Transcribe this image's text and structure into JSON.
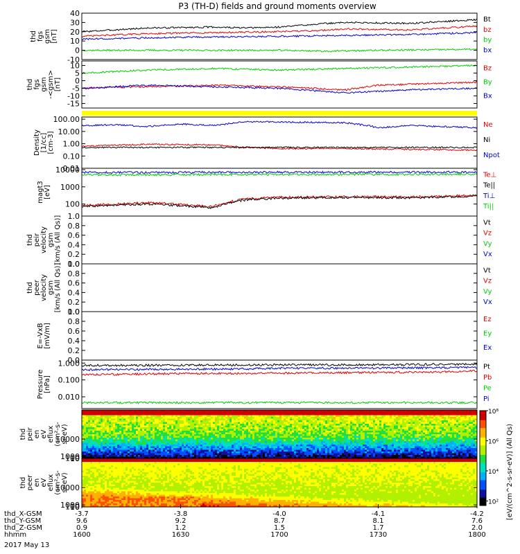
{
  "figure": {
    "title": "P3 (TH-D) fields and ground moments overview",
    "date_label": "2017 May 13"
  },
  "colorbar": {
    "label": "[eV/(cm^2-s-sr-eV)] (All Qs)",
    "ticks": [
      "10⁸",
      "10⁶",
      "10⁴",
      "10²"
    ],
    "range": [
      50,
      100000000
    ]
  },
  "colors": {
    "black": "#000000",
    "red": "#e00000",
    "green": "#00d000",
    "blue": "#0000d0",
    "yellow": "#ffff00"
  },
  "chart_data": [
    {
      "id": "fgs_gsm",
      "type": "line",
      "ylabel": [
        "thd",
        "fgs",
        "gsm",
        "[nT]"
      ],
      "ylim": [
        -10,
        40
      ],
      "yticks": [
        "40",
        "30",
        "20",
        "10",
        "0",
        "-10"
      ],
      "series": [
        {
          "name": "Bt",
          "color": "#000000",
          "x": [
            1600,
            1620,
            1640,
            1650,
            1700,
            1710,
            1720,
            1740,
            1750,
            1800
          ],
          "values": [
            20,
            24,
            25,
            24,
            25,
            28,
            30,
            29,
            31,
            33
          ]
        },
        {
          "name": "bz",
          "color": "#e00000",
          "x": [
            1600,
            1620,
            1640,
            1700,
            1710,
            1720,
            1740,
            1750,
            1800
          ],
          "values": [
            15,
            18,
            19,
            20,
            21,
            23,
            22,
            24,
            26
          ]
        },
        {
          "name": "by",
          "color": "#00d000",
          "x": [
            1600,
            1630,
            1700,
            1715,
            1730,
            1800
          ],
          "values": [
            0,
            0,
            0,
            -1,
            0,
            1
          ]
        },
        {
          "name": "bx",
          "color": "#0000d0",
          "x": [
            1600,
            1630,
            1700,
            1720,
            1740,
            1800
          ],
          "values": [
            12,
            14,
            15,
            16,
            17,
            19
          ]
        }
      ]
    },
    {
      "id": "fgs_gsm_comp",
      "type": "line",
      "ylabel": [
        "thd",
        "fgs",
        "gsm",
        "-<gsm>",
        "[nT]"
      ],
      "ylim": [
        -18,
        13
      ],
      "yticks": [
        "10",
        "5",
        "0",
        "-5",
        "-10",
        "-15"
      ],
      "series": [
        {
          "name": "Bz",
          "color": "#e00000",
          "x": [
            1600,
            1620,
            1640,
            1700,
            1720,
            1730,
            1800
          ],
          "values": [
            -5,
            -4,
            -3,
            -4,
            -6,
            -3,
            -1
          ]
        },
        {
          "name": "By",
          "color": "#00d000",
          "x": [
            1600,
            1620,
            1640,
            1700,
            1720,
            1800
          ],
          "values": [
            5,
            7,
            8,
            7,
            8,
            10
          ]
        },
        {
          "name": "Bx",
          "color": "#0000d0",
          "x": [
            1600,
            1620,
            1640,
            1700,
            1720,
            1740,
            1800
          ],
          "values": [
            -5,
            -3,
            -4,
            -5,
            -8,
            -6,
            -5
          ]
        }
      ]
    },
    {
      "id": "density",
      "type": "line",
      "log": true,
      "ylabel": [
        "Density",
        "[1/cc]",
        "[cm-3]"
      ],
      "ylim": [
        0.01,
        150
      ],
      "yticks": [
        "100.00",
        "10.00",
        "1.00",
        "0.10",
        "0.01"
      ],
      "series": [
        {
          "name": "Ne",
          "color": "#e00000",
          "x": [
            1600,
            1620,
            1640,
            1650,
            1700,
            1720,
            1740,
            1800
          ],
          "values": [
            0.6,
            0.9,
            0.8,
            0.5,
            0.4,
            0.4,
            0.35,
            0.3
          ]
        },
        {
          "name": "Ni",
          "color": "#000000",
          "x": [
            1600,
            1630,
            1700,
            1730,
            1800
          ],
          "values": [
            0.5,
            0.5,
            0.5,
            0.5,
            0.5
          ]
        },
        {
          "name": "Npot",
          "color": "#0000d0",
          "x": [
            1600,
            1610,
            1620,
            1630,
            1640,
            1650,
            1700,
            1720,
            1730,
            1740,
            1800
          ],
          "values": [
            30,
            35,
            25,
            40,
            30,
            60,
            60,
            50,
            20,
            30,
            20
          ]
        }
      ]
    },
    {
      "id": "temperature",
      "type": "line",
      "log": true,
      "ylabel": [
        "magt3",
        "[eV]"
      ],
      "ylim": [
        20,
        12000
      ],
      "yticks": [
        "10000",
        "1000",
        "100"
      ],
      "series": [
        {
          "name": "Te⊥",
          "color": "#e00000",
          "x": [
            1600,
            1620,
            1640,
            1650,
            1700,
            1720,
            1740,
            1800
          ],
          "values": [
            80,
            120,
            70,
            200,
            250,
            270,
            260,
            320
          ]
        },
        {
          "name": "Te||",
          "color": "#000000",
          "x": [
            1600,
            1620,
            1640,
            1650,
            1700,
            1720,
            1740,
            1800
          ],
          "values": [
            70,
            100,
            60,
            180,
            220,
            240,
            230,
            290
          ]
        },
        {
          "name": "Ti⊥",
          "color": "#0000d0",
          "x": [
            1600,
            1700,
            1800
          ],
          "values": [
            6800,
            7000,
            7200
          ]
        },
        {
          "name": "Ti||",
          "color": "#00d000",
          "x": [
            1600,
            1700,
            1800
          ],
          "values": [
            5000,
            5200,
            5400
          ]
        }
      ]
    },
    {
      "id": "peir_velocity",
      "type": "line",
      "ylabel": [
        "thd",
        "peir",
        "velocity",
        "gsm",
        "[km/s (All Qs)]"
      ],
      "ylim": [
        0,
        1
      ],
      "yticks": [
        "1.0",
        "0.8",
        "0.6",
        "0.4",
        "0.2",
        "0.0"
      ],
      "series": [
        {
          "name": "Vt",
          "color": "#000000",
          "x": [],
          "values": []
        },
        {
          "name": "Vz",
          "color": "#e00000",
          "x": [],
          "values": []
        },
        {
          "name": "Vy",
          "color": "#00d000",
          "x": [],
          "values": []
        },
        {
          "name": "Vx",
          "color": "#0000d0",
          "x": [],
          "values": []
        }
      ]
    },
    {
      "id": "peer_velocity",
      "type": "line",
      "ylabel": [
        "thd",
        "peer",
        "velocity",
        "gsm",
        "[km/s (All Qs)]"
      ],
      "ylim": [
        0,
        1
      ],
      "yticks": [
        "1.0",
        "0.8",
        "0.6",
        "0.4",
        "0.2",
        "0.0"
      ],
      "series": [
        {
          "name": "Vt",
          "color": "#000000",
          "x": [],
          "values": []
        },
        {
          "name": "Vz",
          "color": "#e00000",
          "x": [],
          "values": []
        },
        {
          "name": "Vy",
          "color": "#00d000",
          "x": [],
          "values": []
        },
        {
          "name": "Vx",
          "color": "#0000d0",
          "x": [],
          "values": []
        }
      ]
    },
    {
      "id": "efield",
      "type": "line",
      "ylabel": [
        "E=-VxB",
        "[mV/m]"
      ],
      "ylim": [
        0,
        1
      ],
      "yticks": [
        "1.0",
        "0.8",
        "0.6",
        "0.4",
        "0.2",
        "0.0"
      ],
      "series": [
        {
          "name": "Ez",
          "color": "#e00000",
          "x": [],
          "values": []
        },
        {
          "name": "Ey",
          "color": "#00d000",
          "x": [],
          "values": []
        },
        {
          "name": "Ex",
          "color": "#0000d0",
          "x": [],
          "values": []
        }
      ]
    },
    {
      "id": "pressure",
      "type": "line",
      "log": true,
      "ylabel": [
        "Pressure",
        "[nPa]"
      ],
      "ylim": [
        0.002,
        1.5
      ],
      "yticks": [
        "1.000",
        "0.100",
        "0.010"
      ],
      "series": [
        {
          "name": "Pt",
          "color": "#000000",
          "x": [
            1600,
            1700,
            1730,
            1800
          ],
          "values": [
            0.72,
            0.78,
            0.8,
            0.85
          ]
        },
        {
          "name": "Pb",
          "color": "#e00000",
          "x": [
            1600,
            1630,
            1700,
            1730,
            1750,
            1800
          ],
          "values": [
            0.2,
            0.24,
            0.25,
            0.28,
            0.3,
            0.34
          ]
        },
        {
          "name": "Pe",
          "color": "#00d000",
          "x": [
            1600,
            1700,
            1800
          ],
          "values": [
            0.0045,
            0.0045,
            0.0045
          ]
        },
        {
          "name": "Pi",
          "color": "#0000d0",
          "x": [
            1600,
            1650,
            1700,
            1730,
            1800
          ],
          "values": [
            0.4,
            0.45,
            0.5,
            0.5,
            0.55
          ]
        }
      ]
    },
    {
      "id": "peir_spectrogram",
      "type": "heatmap",
      "ylabel": [
        "thd",
        "peir",
        "en",
        "eV",
        "eflux",
        "(cm²-s-",
        "sr-eV)"
      ],
      "ylim": [
        5,
        25000
      ],
      "yticks": [
        "10000",
        "1000",
        "100",
        "10"
      ]
    },
    {
      "id": "peer_spectrogram",
      "type": "heatmap",
      "ylabel": [
        "thd",
        "peer",
        "en",
        "eV",
        "eflux",
        "(cm²-s-",
        "sr-eV)"
      ],
      "ylim": [
        5,
        25000
      ],
      "yticks": [
        "10000",
        "1000",
        "100",
        "10"
      ]
    }
  ],
  "xaxis": {
    "rows": [
      {
        "label": "thd_X-GSM",
        "values": [
          "-3.7",
          "-3.8",
          "-4.0",
          "-4.1",
          "-4.2"
        ]
      },
      {
        "label": "thd_Y-GSM",
        "values": [
          "9.6",
          "9.2",
          "8.7",
          "8.1",
          "7.6"
        ]
      },
      {
        "label": "thd_Z-GSM",
        "values": [
          "0.9",
          "1.2",
          "1.5",
          "1.7",
          "2.0"
        ]
      },
      {
        "label": "hhmm",
        "values": [
          "1600",
          "1630",
          "1700",
          "1730",
          "1800"
        ]
      }
    ]
  }
}
